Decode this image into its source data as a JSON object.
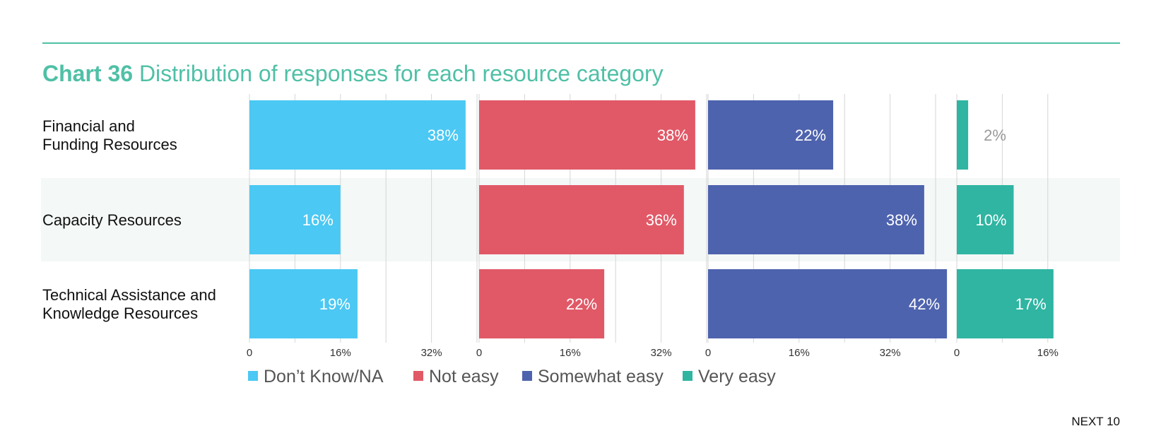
{
  "header": {
    "chart_label": "Chart 36",
    "title": "Distribution of responses for each resource category"
  },
  "footer": {
    "brand": "NEXT 10"
  },
  "colors": {
    "dont_know": "#4bc8f3",
    "not_easy": "#e15967",
    "somewhat_easy": "#4e63ae",
    "very_easy": "#2fb5a2",
    "highlight_row": "#f4f8f7",
    "grid": "#d6d6d6"
  },
  "chart_data": {
    "type": "bar",
    "orientation": "horizontal",
    "layout": "small-multiples",
    "categories": [
      "Financial and Funding Resources",
      "Capacity Resources",
      "Technical Assistance and Knowledge Resources"
    ],
    "series": [
      {
        "name": "Don’t Know/NA",
        "values": [
          38,
          16,
          19
        ],
        "labels": [
          "38%",
          "16%",
          "19%"
        ],
        "ticks": [
          "0",
          "16%",
          "32%"
        ],
        "xlim": [
          0,
          40
        ]
      },
      {
        "name": "Not easy",
        "values": [
          38,
          36,
          22
        ],
        "labels": [
          "38%",
          "36%",
          "22%"
        ],
        "ticks": [
          "0",
          "16%",
          "32%"
        ],
        "xlim": [
          0,
          40
        ]
      },
      {
        "name": "Somewhat easy",
        "values": [
          22,
          38,
          42
        ],
        "labels": [
          "22%",
          "38%",
          "42%"
        ],
        "ticks": [
          "0",
          "16%",
          "32%"
        ],
        "xlim": [
          0,
          43
        ]
      },
      {
        "name": "Very easy",
        "values": [
          2,
          10,
          17
        ],
        "labels": [
          "2%",
          "10%",
          "17%"
        ],
        "ticks": [
          "0",
          "16%"
        ],
        "xlim": [
          0,
          18
        ]
      }
    ],
    "highlighted_category": "Capacity Resources",
    "legend_position": "bottom-left",
    "grid": true
  }
}
